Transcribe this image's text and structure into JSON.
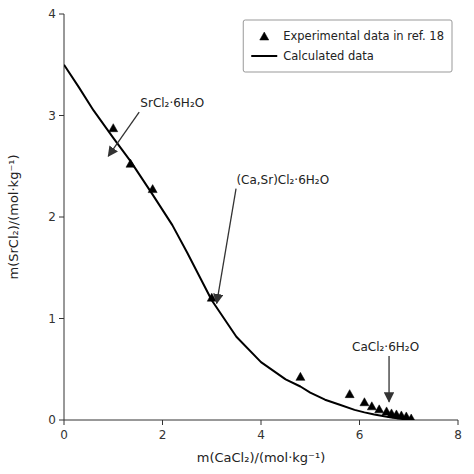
{
  "chart_data": {
    "type": "line",
    "xlabel": "m(CaCl₂)/(mol·kg⁻¹)",
    "ylabel": "m(SrCl₂)/(mol·kg⁻¹)",
    "xlim": [
      0,
      8
    ],
    "ylim": [
      0,
      4
    ],
    "xticks": [
      0,
      2,
      4,
      6,
      8
    ],
    "yticks": [
      0,
      1,
      2,
      3,
      4
    ],
    "grid": false,
    "legend": "upper right",
    "series": [
      {
        "name": "Experimental data in ref. 18",
        "type": "scatter",
        "marker": "triangle",
        "color": "black",
        "x": [
          1.0,
          1.35,
          1.8,
          3.0,
          4.8,
          5.8,
          6.1,
          6.25,
          6.4,
          6.55,
          6.65,
          6.75,
          6.85,
          6.95,
          7.05
        ],
        "values": [
          2.87,
          2.52,
          2.27,
          1.2,
          0.42,
          0.25,
          0.17,
          0.13,
          0.1,
          0.08,
          0.06,
          0.05,
          0.04,
          0.03,
          0.01
        ]
      },
      {
        "name": "Calculated data",
        "type": "line",
        "line_style": "solid",
        "color": "black",
        "x": [
          0.0,
          0.3,
          0.6,
          1.0,
          1.35,
          1.8,
          2.2,
          2.5,
          3.0,
          3.5,
          4.0,
          4.5,
          4.8,
          5.0,
          5.3,
          5.6,
          5.9,
          6.1,
          6.3,
          6.5,
          6.65,
          6.8,
          6.9,
          7.0,
          7.05
        ],
        "values": [
          3.5,
          3.28,
          3.05,
          2.78,
          2.55,
          2.22,
          1.92,
          1.65,
          1.18,
          0.82,
          0.57,
          0.4,
          0.33,
          0.27,
          0.2,
          0.15,
          0.1,
          0.075,
          0.055,
          0.038,
          0.025,
          0.015,
          0.009,
          0.004,
          0.002
        ]
      }
    ],
    "annotations": [
      {
        "text": "SrCl₂·6H₂O",
        "x": 0.9,
        "y": 2.6,
        "text_x": 1.55,
        "text_y": 3.05
      },
      {
        "text": "(Ca,Sr)Cl₂·6H₂O",
        "x": 3.1,
        "y": 1.15,
        "text_x": 3.5,
        "text_y": 2.3
      },
      {
        "text": "CaCl₂·6H₂O",
        "x": 6.6,
        "y": 0.18,
        "text_x": 5.85,
        "text_y": 0.65
      }
    ]
  }
}
